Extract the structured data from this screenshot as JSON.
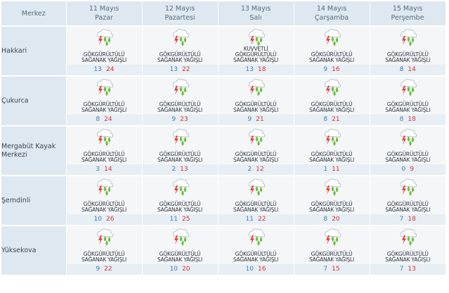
{
  "header": {
    "corner": "Merkez",
    "days": [
      {
        "date": "11 Mayıs",
        "day": "Pazar"
      },
      {
        "date": "12 Mayıs",
        "day": "Pazartesi"
      },
      {
        "date": "13 Mayıs",
        "day": "Salı"
      },
      {
        "date": "14 Mayıs",
        "day": "Çarşamba"
      },
      {
        "date": "15 Mayıs",
        "day": "Perşembe"
      }
    ]
  },
  "icon_name": "thunderstorm-rain-icon",
  "colors": {
    "min_temp": "#3f7fbd",
    "max_temp": "#d6353a",
    "header_bg": "#dde8f1"
  },
  "rows": [
    {
      "city": "Hakkari",
      "days": [
        {
          "d1": "GÖKGÜRÜLTÜLÜ",
          "d2": "SAĞANAK YAĞIŞLI",
          "d3": "",
          "min": "13",
          "max": "24"
        },
        {
          "d1": "GÖKGÜRÜLTÜLÜ",
          "d2": "SAĞANAK YAĞIŞLI",
          "d3": "",
          "min": "13",
          "max": "22"
        },
        {
          "d1": "KUVVETLİ",
          "d2": "GÖKGÜRÜLTÜLÜ",
          "d3": "SAĞANAK YAĞIŞLI",
          "min": "13",
          "max": "18"
        },
        {
          "d1": "GÖKGÜRÜLTÜLÜ",
          "d2": "SAĞANAK YAĞIŞLI",
          "d3": "",
          "min": "9",
          "max": "16"
        },
        {
          "d1": "GÖKGÜRÜLTÜLÜ",
          "d2": "SAĞANAK YAĞIŞLI",
          "d3": "",
          "min": "8",
          "max": "14"
        }
      ]
    },
    {
      "city": "Çukurca",
      "days": [
        {
          "d1": "GÖKGÜRÜLTÜLÜ",
          "d2": "SAĞANAK YAĞIŞLI",
          "d3": "",
          "min": "8",
          "max": "24"
        },
        {
          "d1": "GÖKGÜRÜLTÜLÜ",
          "d2": "SAĞANAK YAĞIŞLI",
          "d3": "",
          "min": "9",
          "max": "23"
        },
        {
          "d1": "GÖKGÜRÜLTÜLÜ",
          "d2": "SAĞANAK YAĞIŞLI",
          "d3": "",
          "min": "9",
          "max": "21"
        },
        {
          "d1": "GÖKGÜRÜLTÜLÜ",
          "d2": "SAĞANAK YAĞIŞLI",
          "d3": "",
          "min": "8",
          "max": "21"
        },
        {
          "d1": "GÖKGÜRÜLTÜLÜ",
          "d2": "SAĞANAK YAĞIŞLI",
          "d3": "",
          "min": "8",
          "max": "18"
        }
      ]
    },
    {
      "city": "Mergabüt Kayak Merkezi",
      "days": [
        {
          "d1": "GÖKGÜRÜLTÜLÜ",
          "d2": "SAĞANAK YAĞIŞLI",
          "d3": "",
          "min": "3",
          "max": "14"
        },
        {
          "d1": "GÖKGÜRÜLTÜLÜ",
          "d2": "SAĞANAK YAĞIŞLI",
          "d3": "",
          "min": "2",
          "max": "13"
        },
        {
          "d1": "GÖKGÜRÜLTÜLÜ",
          "d2": "SAĞANAK YAĞIŞLI",
          "d3": "",
          "min": "2",
          "max": "12"
        },
        {
          "d1": "GÖKGÜRÜLTÜLÜ",
          "d2": "SAĞANAK YAĞIŞLI",
          "d3": "",
          "min": "1",
          "max": "11"
        },
        {
          "d1": "GÖKGÜRÜLTÜLÜ",
          "d2": "SAĞANAK YAĞIŞLI",
          "d3": "",
          "min": "0",
          "max": "9"
        }
      ]
    },
    {
      "city": "Şemdinli",
      "days": [
        {
          "d1": "GÖKGÜRÜLTÜLÜ",
          "d2": "SAĞANAK YAĞIŞLI",
          "d3": "",
          "min": "10",
          "max": "26"
        },
        {
          "d1": "GÖKGÜRÜLTÜLÜ",
          "d2": "SAĞANAK YAĞIŞLI",
          "d3": "",
          "min": "11",
          "max": "25"
        },
        {
          "d1": "GÖKGÜRÜLTÜLÜ",
          "d2": "SAĞANAK YAĞIŞLI",
          "d3": "",
          "min": "11",
          "max": "22"
        },
        {
          "d1": "GÖKGÜRÜLTÜLÜ",
          "d2": "SAĞANAK YAĞIŞLI",
          "d3": "",
          "min": "8",
          "max": "20"
        },
        {
          "d1": "GÖKGÜRÜLTÜLÜ",
          "d2": "SAĞANAK YAĞIŞLI",
          "d3": "",
          "min": "7",
          "max": "18"
        }
      ]
    },
    {
      "city": "Yüksekova",
      "days": [
        {
          "d1": "GÖKGÜRÜLTÜLÜ",
          "d2": "SAĞANAK YAĞIŞLI",
          "d3": "",
          "min": "9",
          "max": "22"
        },
        {
          "d1": "GÖKGÜRÜLTÜLÜ",
          "d2": "SAĞANAK YAĞIŞLI",
          "d3": "",
          "min": "10",
          "max": "20"
        },
        {
          "d1": "GÖKGÜRÜLTÜLÜ",
          "d2": "SAĞANAK YAĞIŞLI",
          "d3": "",
          "min": "10",
          "max": "16"
        },
        {
          "d1": "GÖKGÜRÜLTÜLÜ",
          "d2": "SAĞANAK YAĞIŞLI",
          "d3": "",
          "min": "7",
          "max": "15"
        },
        {
          "d1": "GÖKGÜRÜLTÜLÜ",
          "d2": "SAĞANAK YAĞIŞLI",
          "d3": "",
          "min": "7",
          "max": "13"
        }
      ]
    }
  ]
}
